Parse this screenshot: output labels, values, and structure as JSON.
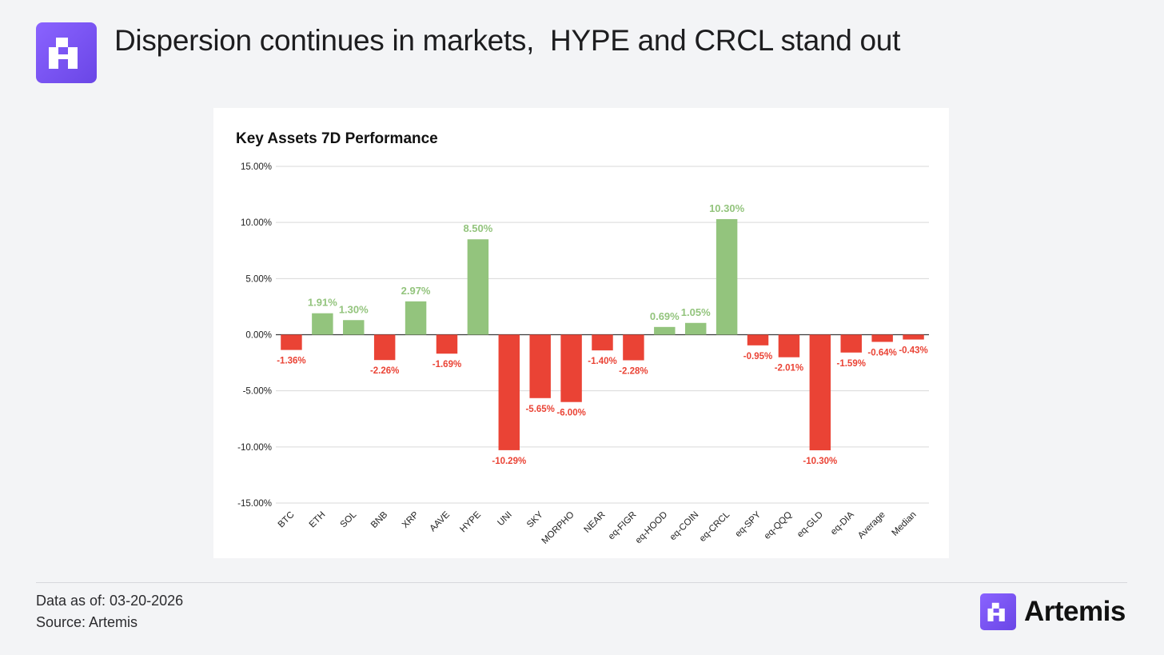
{
  "header": {
    "title": "Dispersion continues in markets,  HYPE and CRCL stand out",
    "logo_icon": "artemis-logo-icon"
  },
  "footer": {
    "date_label": "Data as of: 03-20-2026",
    "source_label": "Source: Artemis"
  },
  "brand": {
    "name": "Artemis",
    "icon": "artemis-logo-icon"
  },
  "colors": {
    "positive": "#93c47d",
    "negative": "#ea4335",
    "accent": "#7b55f5"
  },
  "chart_data": {
    "type": "bar",
    "title": "Key Assets 7D Performance",
    "xlabel": "",
    "ylabel": "",
    "ylim": [
      -15,
      15
    ],
    "yticks": [
      15,
      10,
      5,
      0,
      -5,
      -10,
      -15
    ],
    "ytick_labels": [
      "15.00%",
      "10.00%",
      "5.00%",
      "0.00%",
      "-5.00%",
      "-10.00%",
      "-15.00%"
    ],
    "grid": true,
    "legend": "none",
    "categories": [
      "BTC",
      "ETH",
      "SOL",
      "BNB",
      "XRP",
      "AAVE",
      "HYPE",
      "UNI",
      "SKY",
      "MORPHO",
      "NEAR",
      "eq-FIGR",
      "eq-HOOD",
      "eq-COIN",
      "eq-CRCL",
      "eq-SPY",
      "eq-QQQ",
      "eq-GLD",
      "eq-DIA",
      "Average",
      "Median"
    ],
    "values": [
      -1.36,
      1.91,
      1.3,
      -2.26,
      2.97,
      -1.69,
      8.5,
      -10.29,
      -5.65,
      -6.0,
      -1.4,
      -2.28,
      0.69,
      1.05,
      10.3,
      -0.95,
      -2.01,
      -10.3,
      -1.59,
      -0.64,
      -0.43
    ],
    "data_labels": [
      "-1.36%",
      "1.91%",
      "1.30%",
      "-2.26%",
      "2.97%",
      "-1.69%",
      "8.50%",
      "-10.29%",
      "-5.65%",
      "-6.00%",
      "-1.40%",
      "-2.28%",
      "0.69%",
      "1.05%",
      "10.30%",
      "-0.95%",
      "-2.01%",
      "-10.30%",
      "-1.59%",
      "-0.64%",
      "-0.43%"
    ]
  }
}
